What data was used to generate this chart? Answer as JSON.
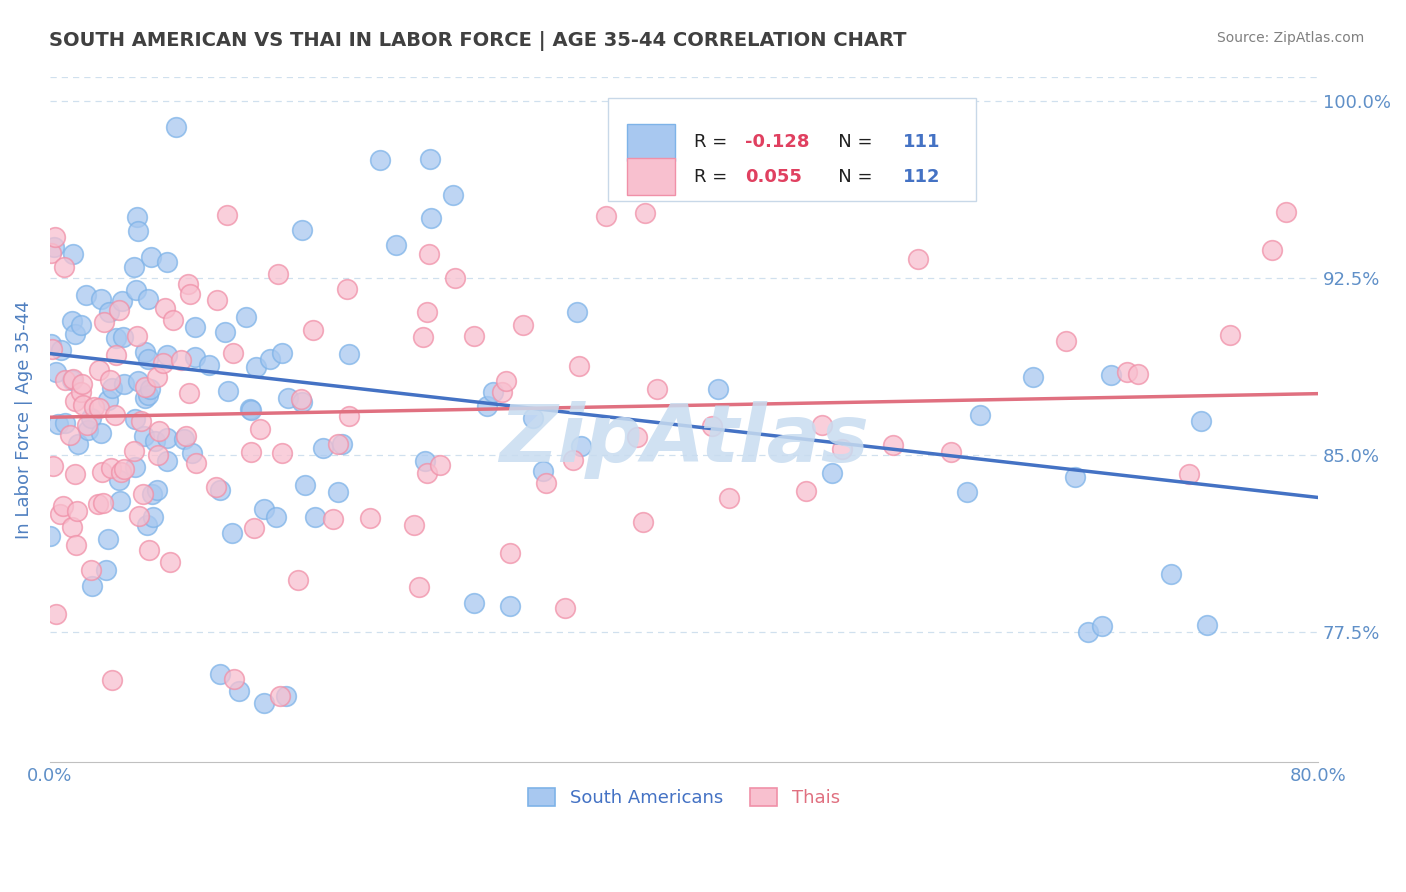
{
  "title": "SOUTH AMERICAN VS THAI IN LABOR FORCE | AGE 35-44 CORRELATION CHART",
  "source_text": "Source: ZipAtlas.com",
  "ylabel": "In Labor Force | Age 35-44",
  "xlim": [
    0.0,
    0.8
  ],
  "ylim": [
    0.72,
    1.01
  ],
  "yticks": [
    0.775,
    0.85,
    0.925,
    1.0
  ],
  "yticklabels": [
    "77.5%",
    "85.0%",
    "92.5%",
    "100.0%"
  ],
  "legend_r_sa": "-0.128",
  "legend_n_sa": "111",
  "legend_r_thai": "0.055",
  "legend_n_thai": "112",
  "blue_marker_color": "#A8C8F0",
  "blue_edge_color": "#7EB3E8",
  "pink_marker_color": "#F8C0CF",
  "pink_edge_color": "#F090A8",
  "blue_line_color": "#4472C4",
  "pink_line_color": "#E07080",
  "title_color": "#404040",
  "axis_label_color": "#5080C0",
  "tick_color": "#6090C8",
  "source_color": "#808080",
  "watermark_color": "#C8DCF0",
  "background_color": "#FFFFFF",
  "grid_color": "#D0E0EE",
  "legend_r_sa_color": "#E04060",
  "legend_r_thai_color": "#4472C4",
  "legend_n_color": "#4472C4"
}
